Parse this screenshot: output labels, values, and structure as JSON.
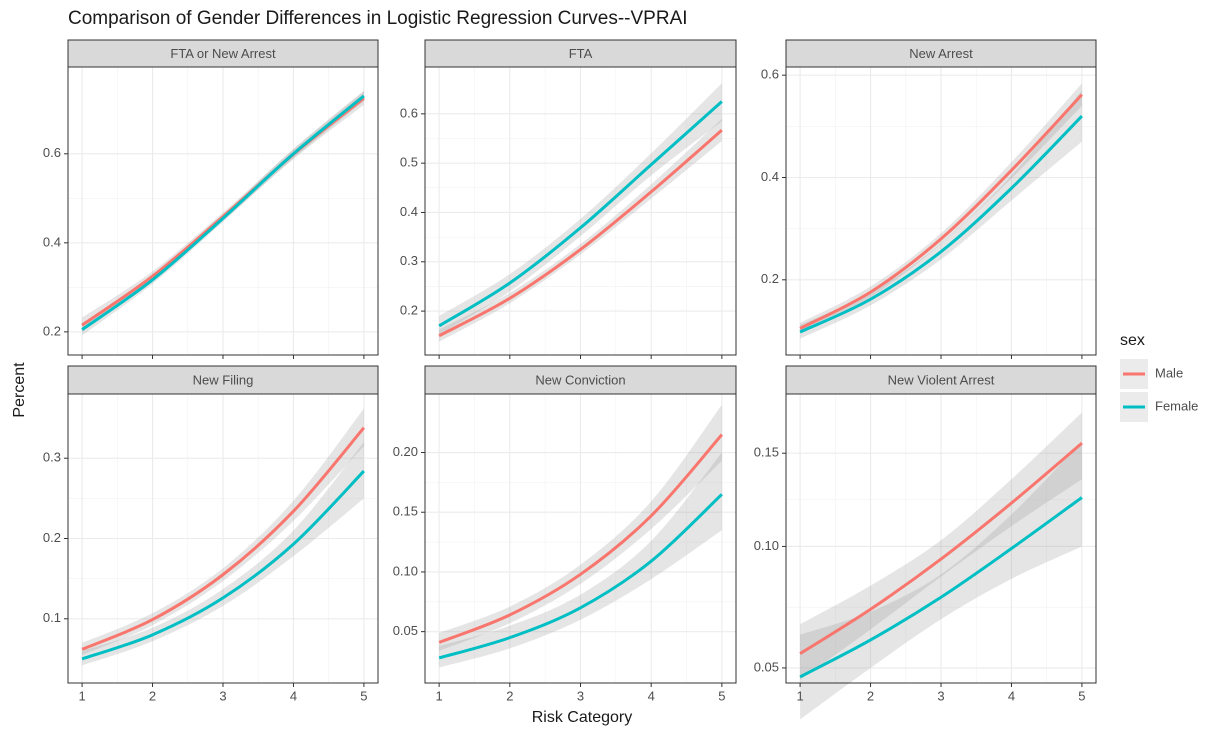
{
  "title": "Comparison of Gender Differences in Logistic Regression Curves--VPRAI",
  "x_label": "Risk Category",
  "y_label": "Percent",
  "legend_title": "sex",
  "chart_data": [
    {
      "type": "line",
      "title": "FTA or New Arrest",
      "x": [
        1,
        2,
        3,
        4,
        5
      ],
      "xlim": [
        0.8,
        5.2
      ],
      "xticks": [
        1,
        2,
        3,
        4,
        5
      ],
      "ylim": [
        0.148,
        0.795
      ],
      "yticks": [
        0.2,
        0.4,
        0.6
      ],
      "grid": true,
      "series": [
        {
          "name": "Male",
          "color": "#F8766D",
          "values": [
            0.215,
            0.325,
            0.459,
            0.599,
            0.725
          ],
          "lower": [
            0.2,
            0.315,
            0.45,
            0.588,
            0.71
          ],
          "upper": [
            0.232,
            0.336,
            0.468,
            0.61,
            0.74
          ]
        },
        {
          "name": "Female",
          "color": "#00BFC4",
          "values": [
            0.205,
            0.317,
            0.455,
            0.6,
            0.73
          ],
          "lower": [
            0.192,
            0.308,
            0.447,
            0.59,
            0.718
          ],
          "upper": [
            0.219,
            0.327,
            0.463,
            0.611,
            0.742
          ]
        }
      ]
    },
    {
      "type": "line",
      "title": "FTA",
      "x": [
        1,
        2,
        3,
        4,
        5
      ],
      "xlim": [
        0.8,
        5.2
      ],
      "xticks": [
        1,
        2,
        3,
        4,
        5
      ],
      "ylim": [
        0.111,
        0.695
      ],
      "yticks": [
        0.2,
        0.3,
        0.4,
        0.5,
        0.6
      ],
      "grid": true,
      "series": [
        {
          "name": "Male",
          "color": "#F8766D",
          "values": [
            0.15,
            0.226,
            0.325,
            0.442,
            0.567
          ],
          "lower": [
            0.138,
            0.216,
            0.315,
            0.428,
            0.545
          ],
          "upper": [
            0.163,
            0.237,
            0.336,
            0.457,
            0.59
          ]
        },
        {
          "name": "Female",
          "color": "#00BFC4",
          "values": [
            0.17,
            0.257,
            0.369,
            0.497,
            0.625
          ],
          "lower": [
            0.152,
            0.24,
            0.352,
            0.475,
            0.585
          ],
          "upper": [
            0.19,
            0.275,
            0.387,
            0.52,
            0.662
          ]
        }
      ]
    },
    {
      "type": "line",
      "title": "New Arrest",
      "x": [
        1,
        2,
        3,
        4,
        5
      ],
      "xlim": [
        0.8,
        5.2
      ],
      "xticks": [
        1,
        2,
        3,
        4,
        5
      ],
      "ylim": [
        0.053,
        0.616
      ],
      "yticks": [
        0.2,
        0.4,
        0.6
      ],
      "grid": true,
      "series": [
        {
          "name": "Male",
          "color": "#F8766D",
          "values": [
            0.105,
            0.176,
            0.28,
            0.414,
            0.562
          ],
          "lower": [
            0.095,
            0.166,
            0.27,
            0.398,
            0.54
          ],
          "upper": [
            0.116,
            0.187,
            0.291,
            0.43,
            0.584
          ]
        },
        {
          "name": "Female",
          "color": "#00BFC4",
          "values": [
            0.098,
            0.162,
            0.255,
            0.379,
            0.52
          ],
          "lower": [
            0.085,
            0.15,
            0.24,
            0.355,
            0.47
          ],
          "upper": [
            0.112,
            0.175,
            0.271,
            0.404,
            0.57
          ]
        }
      ]
    },
    {
      "type": "line",
      "title": "New Filing",
      "x": [
        1,
        2,
        3,
        4,
        5
      ],
      "xlim": [
        0.8,
        5.2
      ],
      "xticks": [
        1,
        2,
        3,
        4,
        5
      ],
      "ylim": [
        0.02,
        0.38
      ],
      "yticks": [
        0.1,
        0.2,
        0.3
      ],
      "grid": true,
      "series": [
        {
          "name": "Male",
          "color": "#F8766D",
          "values": [
            0.062,
            0.099,
            0.155,
            0.234,
            0.338
          ],
          "lower": [
            0.055,
            0.092,
            0.147,
            0.222,
            0.315
          ],
          "upper": [
            0.07,
            0.107,
            0.163,
            0.247,
            0.362
          ]
        },
        {
          "name": "Female",
          "color": "#00BFC4",
          "values": [
            0.05,
            0.08,
            0.126,
            0.193,
            0.284
          ],
          "lower": [
            0.042,
            0.072,
            0.116,
            0.178,
            0.25
          ],
          "upper": [
            0.06,
            0.089,
            0.137,
            0.21,
            0.32
          ]
        }
      ]
    },
    {
      "type": "line",
      "title": "New Conviction",
      "x": [
        1,
        2,
        3,
        4,
        5
      ],
      "xlim": [
        0.8,
        5.2
      ],
      "xticks": [
        1,
        2,
        3,
        4,
        5
      ],
      "ylim": [
        0.007,
        0.249
      ],
      "yticks": [
        0.05,
        {
          "value": 0.1,
          "label": "0.10"
        },
        0.15,
        {
          "value": 0.2,
          "label": "0.20"
        }
      ],
      "grid": true,
      "series": [
        {
          "name": "Male",
          "color": "#F8766D",
          "values": [
            0.041,
            0.064,
            0.098,
            0.147,
            0.215
          ],
          "lower": [
            0.034,
            0.057,
            0.09,
            0.136,
            0.193
          ],
          "upper": [
            0.049,
            0.071,
            0.106,
            0.159,
            0.24
          ]
        },
        {
          "name": "Female",
          "color": "#00BFC4",
          "values": [
            0.028,
            0.045,
            0.07,
            0.109,
            0.165
          ],
          "lower": [
            0.02,
            0.036,
            0.06,
            0.094,
            0.135
          ],
          "upper": [
            0.038,
            0.055,
            0.081,
            0.126,
            0.2
          ]
        }
      ]
    },
    {
      "type": "line",
      "title": "New Violent Arrest",
      "x": [
        1,
        2,
        3,
        4,
        5
      ],
      "xlim": [
        0.8,
        5.2
      ],
      "xticks": [
        1,
        2,
        3,
        4,
        5
      ],
      "ylim": [
        0.045,
        0.187
      ],
      "yticks": [
        0.05,
        {
          "value": 0.1,
          "label": "0.10"
        },
        0.15
      ],
      "y_scale": "sqrt",
      "grid": true,
      "series": [
        {
          "name": "Male",
          "color": "#F8766D",
          "values": [
            0.055,
            0.072,
            0.094,
            0.122,
            0.156
          ],
          "lower": [
            0.046,
            0.064,
            0.086,
            0.11,
            0.135
          ],
          "upper": [
            0.066,
            0.082,
            0.103,
            0.135,
            0.175
          ]
        },
        {
          "name": "Female",
          "color": "#00BFC4",
          "values": [
            0.047,
            0.06,
            0.077,
            0.099,
            0.125
          ],
          "lower": [
            0.034,
            0.05,
            0.068,
            0.085,
            0.1
          ],
          "upper": [
            0.062,
            0.071,
            0.087,
            0.116,
            0.157
          ]
        }
      ]
    }
  ]
}
